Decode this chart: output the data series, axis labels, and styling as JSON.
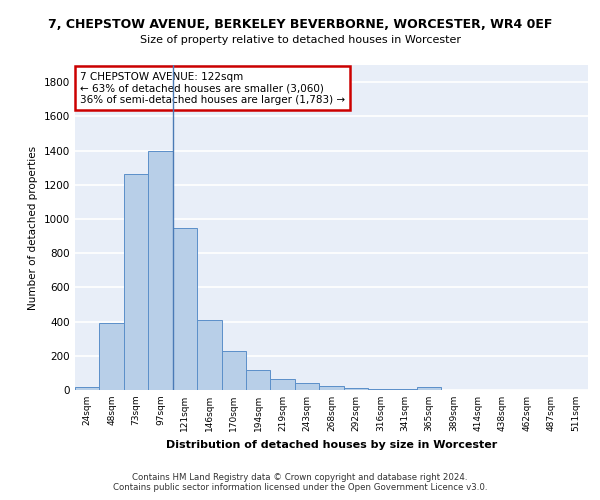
{
  "title": "7, CHEPSTOW AVENUE, BERKELEY BEVERBORNE, WORCESTER, WR4 0EF",
  "subtitle": "Size of property relative to detached houses in Worcester",
  "xlabel": "Distribution of detached houses by size in Worcester",
  "ylabel": "Number of detached properties",
  "bar_color": "#b8cfe8",
  "bar_edge_color": "#5b8fc9",
  "background_color": "#e8eef8",
  "grid_color": "#ffffff",
  "categories": [
    "24sqm",
    "48sqm",
    "73sqm",
    "97sqm",
    "121sqm",
    "146sqm",
    "170sqm",
    "194sqm",
    "219sqm",
    "243sqm",
    "268sqm",
    "292sqm",
    "316sqm",
    "341sqm",
    "365sqm",
    "389sqm",
    "414sqm",
    "438sqm",
    "462sqm",
    "487sqm",
    "511sqm"
  ],
  "values": [
    20,
    390,
    1260,
    1400,
    950,
    410,
    230,
    115,
    62,
    42,
    22,
    12,
    6,
    3,
    15,
    0,
    0,
    0,
    0,
    0,
    0
  ],
  "ylim": [
    0,
    1900
  ],
  "yticks": [
    0,
    200,
    400,
    600,
    800,
    1000,
    1200,
    1400,
    1600,
    1800
  ],
  "property_line_x": 4,
  "annotation_text": "7 CHEPSTOW AVENUE: 122sqm\n← 63% of detached houses are smaller (3,060)\n36% of semi-detached houses are larger (1,783) →",
  "annotation_box_color": "#ffffff",
  "annotation_border_color": "#cc0000",
  "footer_line1": "Contains HM Land Registry data © Crown copyright and database right 2024.",
  "footer_line2": "Contains public sector information licensed under the Open Government Licence v3.0."
}
